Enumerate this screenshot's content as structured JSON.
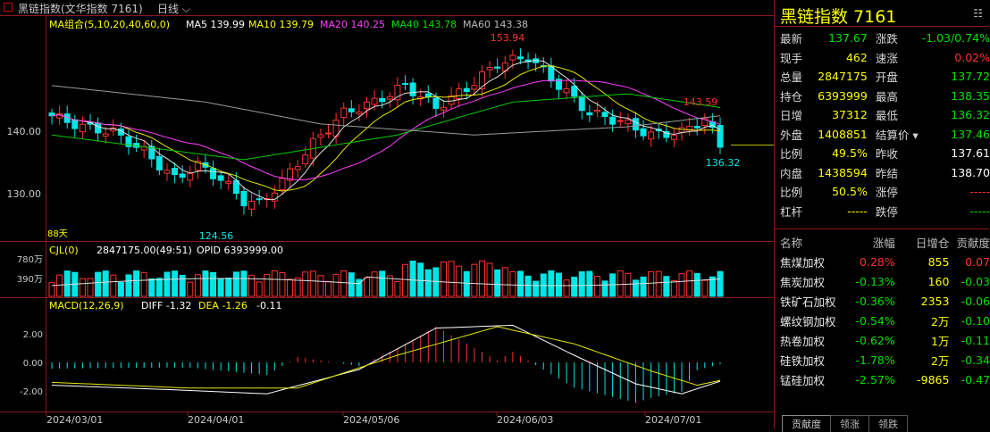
{
  "window": {
    "title": "黑链指数(文华指数 7161)",
    "period": "日线"
  },
  "main_legend": {
    "group": "MA组合(5,10,20,40,60,0)",
    "ma5": "MA5 139.99",
    "ma10": "MA10 139.79",
    "ma20": "MA20 140.25",
    "ma40": "MA40 143.78",
    "ma60": "MA60 143.38"
  },
  "price_axis": [
    "140.00",
    "130.00"
  ],
  "annotations": {
    "high": "153.94",
    "low": "124.56",
    "local_high": "143.59",
    "last_low": "136.32",
    "days": "88天"
  },
  "cjl_legend": {
    "label": "CJL(0)",
    "vol": "2847175.00(49:51)",
    "opid": "OPID 6393999.00"
  },
  "vol_axis": [
    "780万",
    "390万"
  ],
  "macd_legend": {
    "label": "MACD(12,26,9)",
    "diff": "DIFF -1.32",
    "dea": "DEA -1.26",
    "macd": "-0.11"
  },
  "macd_axis": [
    "2.00",
    "0.00",
    "-2.00"
  ],
  "dates": [
    "2024/03/01",
    "2024/04/01",
    "2024/05/06",
    "2024/06/03",
    "2024/07/01"
  ],
  "colors": {
    "up": "#ff3232",
    "down": "#00e5e5",
    "ma5": "#e0e0e0",
    "ma10": "#e6e600",
    "ma20": "#ff40ff",
    "ma40": "#00cc00",
    "ma60": "#9a9a9a",
    "frame": "#8b1a1a"
  },
  "quote": {
    "title": "黑链指数 7161",
    "menu_icon": "menu-icon",
    "rows": [
      {
        "l1": "最新",
        "v1": "137.67",
        "c1": "g",
        "l2": "涨跌",
        "v2": "-1.03/0.74%",
        "c2": "g"
      },
      {
        "l1": "现手",
        "v1": "462",
        "c1": "y",
        "l2": "速涨",
        "v2": "0.02%",
        "c2": "r"
      },
      {
        "l1": "总量",
        "v1": "2847175",
        "c1": "y",
        "l2": "开盘",
        "v2": "137.72",
        "c2": "g"
      },
      {
        "l1": "持仓",
        "v1": "6393999",
        "c1": "y",
        "l2": "最高",
        "v2": "138.35",
        "c2": "g"
      },
      {
        "l1": "日增",
        "v1": "37312",
        "c1": "y",
        "l2": "最低",
        "v2": "136.32",
        "c2": "g"
      },
      {
        "l1": "外盘",
        "v1": "1408851",
        "c1": "y",
        "l2": "结算价",
        "v2": "137.46",
        "c2": "g"
      },
      {
        "l1": "比例",
        "v1": "49.5%",
        "c1": "y",
        "l2": "昨收",
        "v2": "137.61",
        "c2": "w"
      },
      {
        "l1": "内盘",
        "v1": "1438594",
        "c1": "y",
        "l2": "昨结",
        "v2": "138.70",
        "c2": "w"
      },
      {
        "l1": "比例",
        "v1": "50.5%",
        "c1": "y",
        "l2": "涨停",
        "v2": "-----",
        "c2": "r"
      },
      {
        "l1": "杠杆",
        "v1": "-----",
        "c1": "y",
        "l2": "跌停",
        "v2": "-----",
        "c2": "g"
      }
    ]
  },
  "components": {
    "headers": [
      "名称",
      "涨幅",
      "日增仓",
      "贡献度"
    ],
    "rows": [
      {
        "name": "焦煤加权",
        "chg": "0.28%",
        "cc": "r",
        "oi": "855",
        "contrib": "0.07",
        "tc": "r"
      },
      {
        "name": "焦炭加权",
        "chg": "-0.13%",
        "cc": "g",
        "oi": "160",
        "contrib": "-0.03",
        "tc": "g"
      },
      {
        "name": "铁矿石加权",
        "chg": "-0.36%",
        "cc": "g",
        "oi": "2353",
        "contrib": "-0.06",
        "tc": "g"
      },
      {
        "name": "螺纹钢加权",
        "chg": "-0.54%",
        "cc": "g",
        "oi": "2万",
        "contrib": "-0.10",
        "tc": "g"
      },
      {
        "name": "热卷加权",
        "chg": "-0.62%",
        "cc": "g",
        "oi": "1万",
        "contrib": "-0.11",
        "tc": "g"
      },
      {
        "name": "硅铁加权",
        "chg": "-1.78%",
        "cc": "g",
        "oi": "2万",
        "contrib": "-0.34",
        "tc": "g"
      },
      {
        "name": "锰硅加权",
        "chg": "-2.57%",
        "cc": "g",
        "oi": "-9865",
        "contrib": "-0.47",
        "tc": "g"
      }
    ]
  },
  "tabs": [
    "贡献度",
    "领涨",
    "领跌"
  ]
}
